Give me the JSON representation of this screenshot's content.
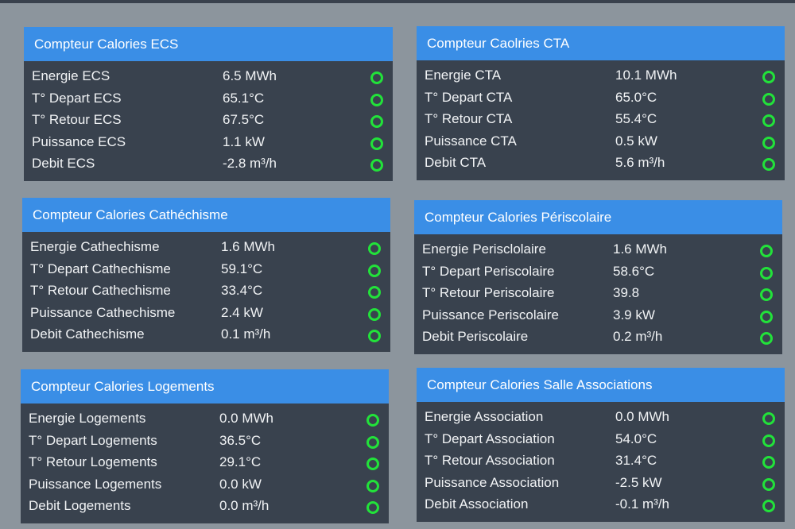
{
  "colors": {
    "page_bg": "#8c959d",
    "panel_bg": "#39424e",
    "header_bg": "#3a8ee6",
    "status_ok": "#22e23a"
  },
  "status_icon": "status-ok-icon",
  "panels": [
    {
      "title": "Compteur Calories ECS",
      "rows": [
        {
          "label": "Energie ECS",
          "value": "6.5 MWh"
        },
        {
          "label": "T° Depart ECS",
          "value": "65.1°C"
        },
        {
          "label": "T° Retour ECS",
          "value": "67.5°C"
        },
        {
          "label": "Puissance ECS",
          "value": "1.1 kW"
        },
        {
          "label": "Debit ECS",
          "value": "-2.8 m³/h"
        }
      ]
    },
    {
      "title": "Compteur Caolries CTA",
      "rows": [
        {
          "label": "Energie CTA",
          "value": "10.1 MWh"
        },
        {
          "label": "T° Depart CTA",
          "value": "65.0°C"
        },
        {
          "label": "T° Retour CTA",
          "value": "55.4°C"
        },
        {
          "label": "Puissance CTA",
          "value": "0.5 kW"
        },
        {
          "label": "Debit CTA",
          "value": "5.6 m³/h"
        }
      ]
    },
    {
      "title": "Compteur Calories Cathéchisme",
      "rows": [
        {
          "label": "Energie Cathechisme",
          "value": "1.6 MWh"
        },
        {
          "label": "T° Depart Cathechisme",
          "value": "59.1°C"
        },
        {
          "label": "T° Retour Cathechisme",
          "value": "33.4°C"
        },
        {
          "label": "Puissance Cathechisme",
          "value": "2.4 kW"
        },
        {
          "label": "Debit Cathechisme",
          "value": "0.1 m³/h"
        }
      ]
    },
    {
      "title": "Compteur Calories Périscolaire",
      "rows": [
        {
          "label": "Energie Perisclolaire",
          "value": "1.6 MWh"
        },
        {
          "label": "T° Depart Periscolaire",
          "value": "58.6°C"
        },
        {
          "label": "T° Retour Periscolaire",
          "value": "39.8"
        },
        {
          "label": "Puissance Periscolaire",
          "value": "3.9 kW"
        },
        {
          "label": "Debit Periscolaire",
          "value": "0.2 m³/h"
        }
      ]
    },
    {
      "title": "Compteur Calories Logements",
      "rows": [
        {
          "label": "Energie Logements",
          "value": "0.0 MWh"
        },
        {
          "label": "T° Depart Logements",
          "value": "36.5°C"
        },
        {
          "label": "T° Retour Logements",
          "value": "29.1°C"
        },
        {
          "label": "Puissance Logements",
          "value": "0.0 kW"
        },
        {
          "label": "Debit Logements",
          "value": "0.0 m³/h"
        }
      ]
    },
    {
      "title": "Compteur Calories Salle Associations",
      "rows": [
        {
          "label": "Energie Association",
          "value": "0.0 MWh"
        },
        {
          "label": "T° Depart Association",
          "value": "54.0°C"
        },
        {
          "label": "T° Retour Association",
          "value": "31.4°C"
        },
        {
          "label": "Puissance Association",
          "value": "-2.5 kW"
        },
        {
          "label": "Debit Association",
          "value": "-0.1 m³/h"
        }
      ]
    }
  ]
}
